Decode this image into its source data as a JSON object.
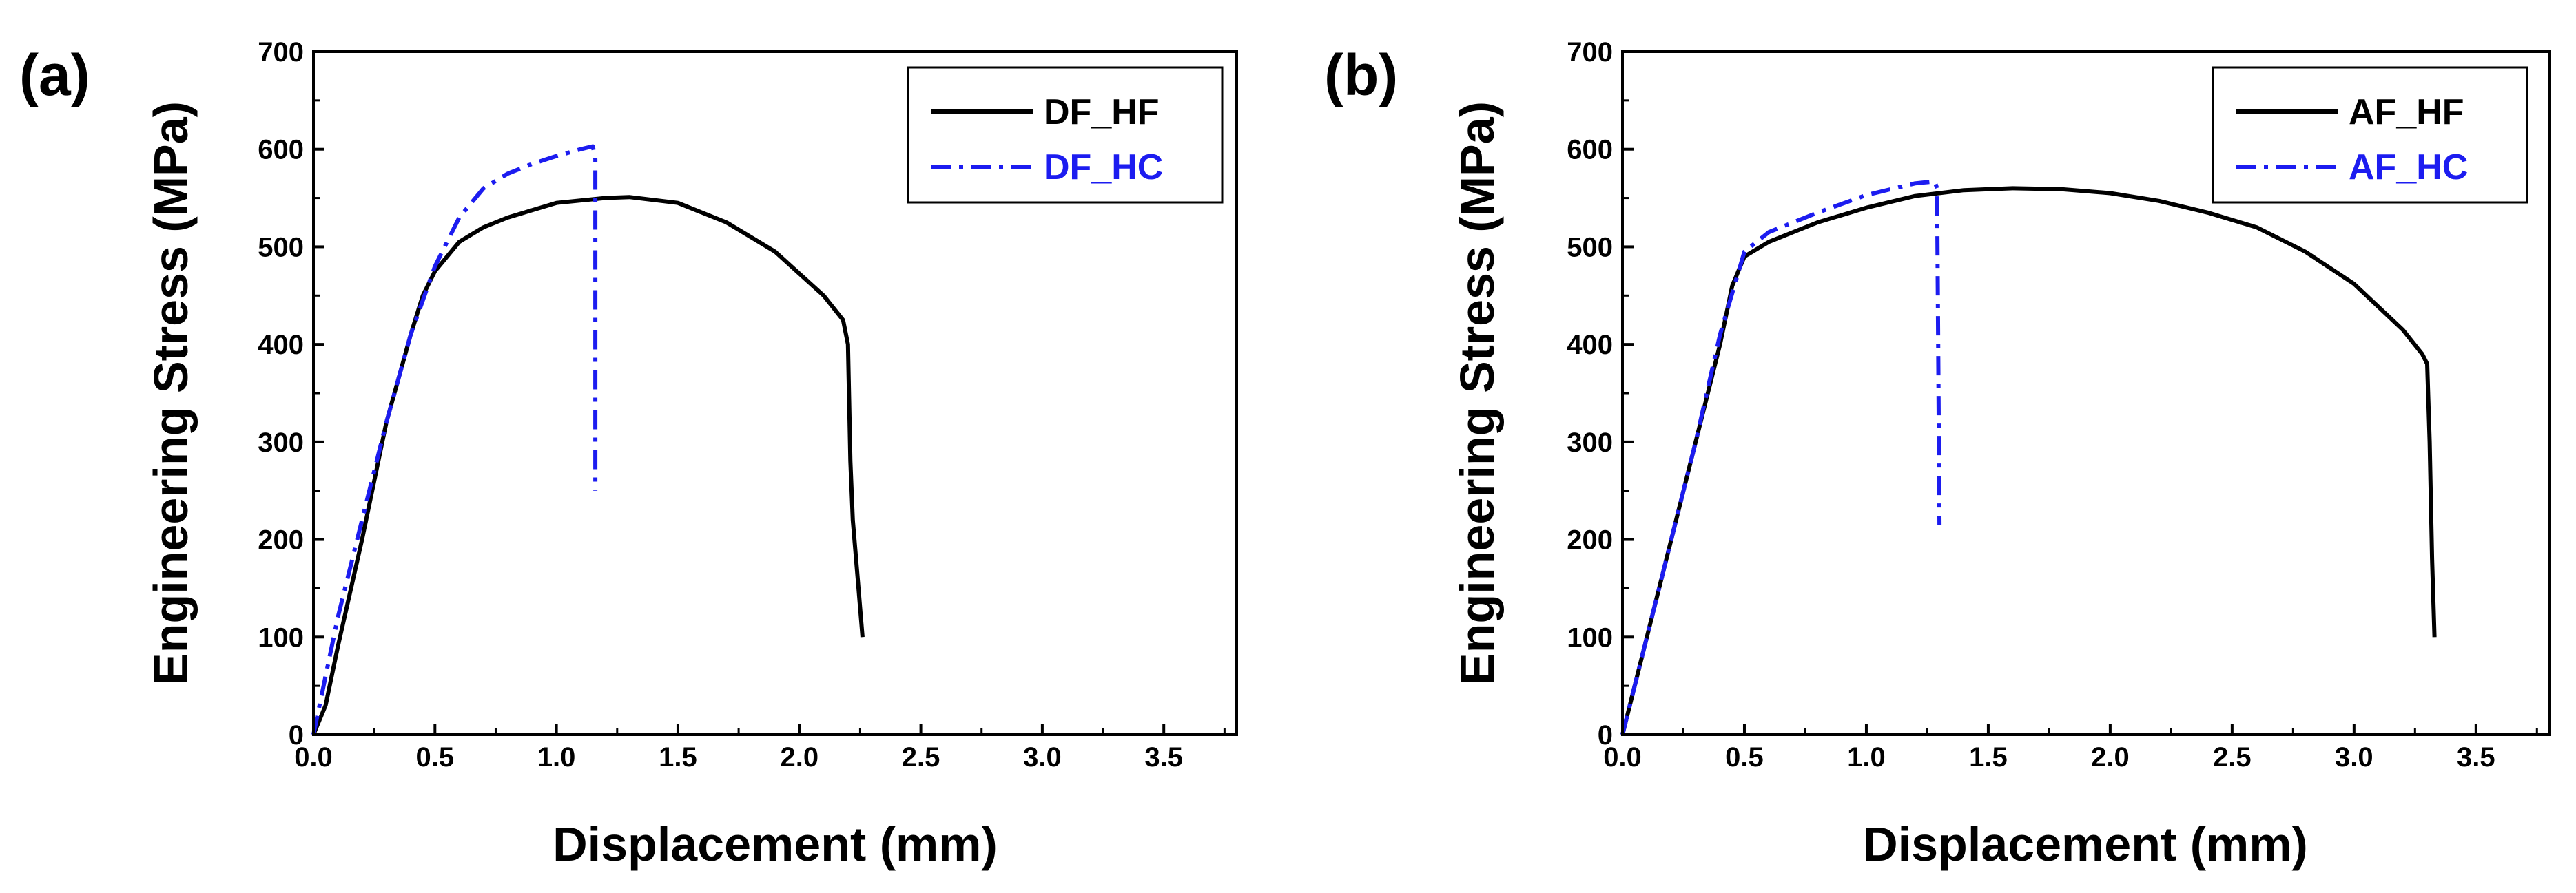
{
  "chart_data": [
    {
      "panel_label": "(a)",
      "type": "line",
      "xlabel": "Displacement (mm)",
      "ylabel": "Engineering Stress (MPa)",
      "xlim": [
        0,
        3.8
      ],
      "ylim": [
        0,
        700
      ],
      "xticks": [
        "0.0",
        "0.5",
        "1.0",
        "1.5",
        "2.0",
        "2.5",
        "3.0",
        "3.5"
      ],
      "yticks": [
        "0",
        "100",
        "200",
        "300",
        "400",
        "500",
        "600",
        "700"
      ],
      "legend_position": "top-right",
      "series": [
        {
          "name": "DF_HF",
          "color": "#000000",
          "style": "solid",
          "x": [
            0.0,
            0.05,
            0.1,
            0.2,
            0.3,
            0.4,
            0.45,
            0.5,
            0.6,
            0.7,
            0.8,
            1.0,
            1.2,
            1.3,
            1.5,
            1.7,
            1.9,
            2.1,
            2.18,
            2.2,
            2.21,
            2.22,
            2.24,
            2.26
          ],
          "y": [
            0,
            30,
            90,
            200,
            320,
            410,
            450,
            475,
            505,
            520,
            530,
            545,
            550,
            551,
            545,
            525,
            495,
            450,
            425,
            400,
            280,
            220,
            160,
            100
          ]
        },
        {
          "name": "DF_HC",
          "color": "#1c1cf0",
          "style": "dashdot",
          "x": [
            0.0,
            0.05,
            0.1,
            0.2,
            0.3,
            0.4,
            0.5,
            0.6,
            0.7,
            0.8,
            0.9,
            1.0,
            1.1,
            1.15,
            1.16,
            1.16
          ],
          "y": [
            0,
            60,
            120,
            220,
            320,
            410,
            480,
            530,
            560,
            575,
            585,
            593,
            600,
            603,
            590,
            250
          ]
        }
      ]
    },
    {
      "panel_label": "(b)",
      "type": "line",
      "xlabel": "Displacement (mm)",
      "ylabel": "Engineering Stress (MPa)",
      "xlim": [
        0,
        3.8
      ],
      "ylim": [
        0,
        700
      ],
      "xticks": [
        "0.0",
        "0.5",
        "1.0",
        "1.5",
        "2.0",
        "2.5",
        "3.0",
        "3.5"
      ],
      "yticks": [
        "0",
        "100",
        "200",
        "300",
        "400",
        "500",
        "600",
        "700"
      ],
      "legend_position": "top-right",
      "series": [
        {
          "name": "AF_HF",
          "color": "#000000",
          "style": "solid",
          "x": [
            0.0,
            0.1,
            0.2,
            0.3,
            0.4,
            0.45,
            0.5,
            0.6,
            0.8,
            1.0,
            1.2,
            1.4,
            1.6,
            1.8,
            2.0,
            2.2,
            2.4,
            2.6,
            2.8,
            3.0,
            3.2,
            3.28,
            3.3,
            3.31,
            3.32,
            3.33
          ],
          "y": [
            0,
            100,
            200,
            300,
            400,
            460,
            490,
            505,
            525,
            540,
            552,
            558,
            560,
            559,
            555,
            547,
            535,
            520,
            495,
            462,
            415,
            390,
            380,
            300,
            180,
            100
          ]
        },
        {
          "name": "AF_HC",
          "color": "#1c1cf0",
          "style": "dashdot",
          "x": [
            0.0,
            0.1,
            0.2,
            0.3,
            0.4,
            0.5,
            0.6,
            0.8,
            1.0,
            1.2,
            1.28,
            1.29,
            1.3
          ],
          "y": [
            0,
            100,
            200,
            300,
            410,
            495,
            515,
            535,
            553,
            565,
            567,
            560,
            215
          ]
        }
      ]
    }
  ]
}
